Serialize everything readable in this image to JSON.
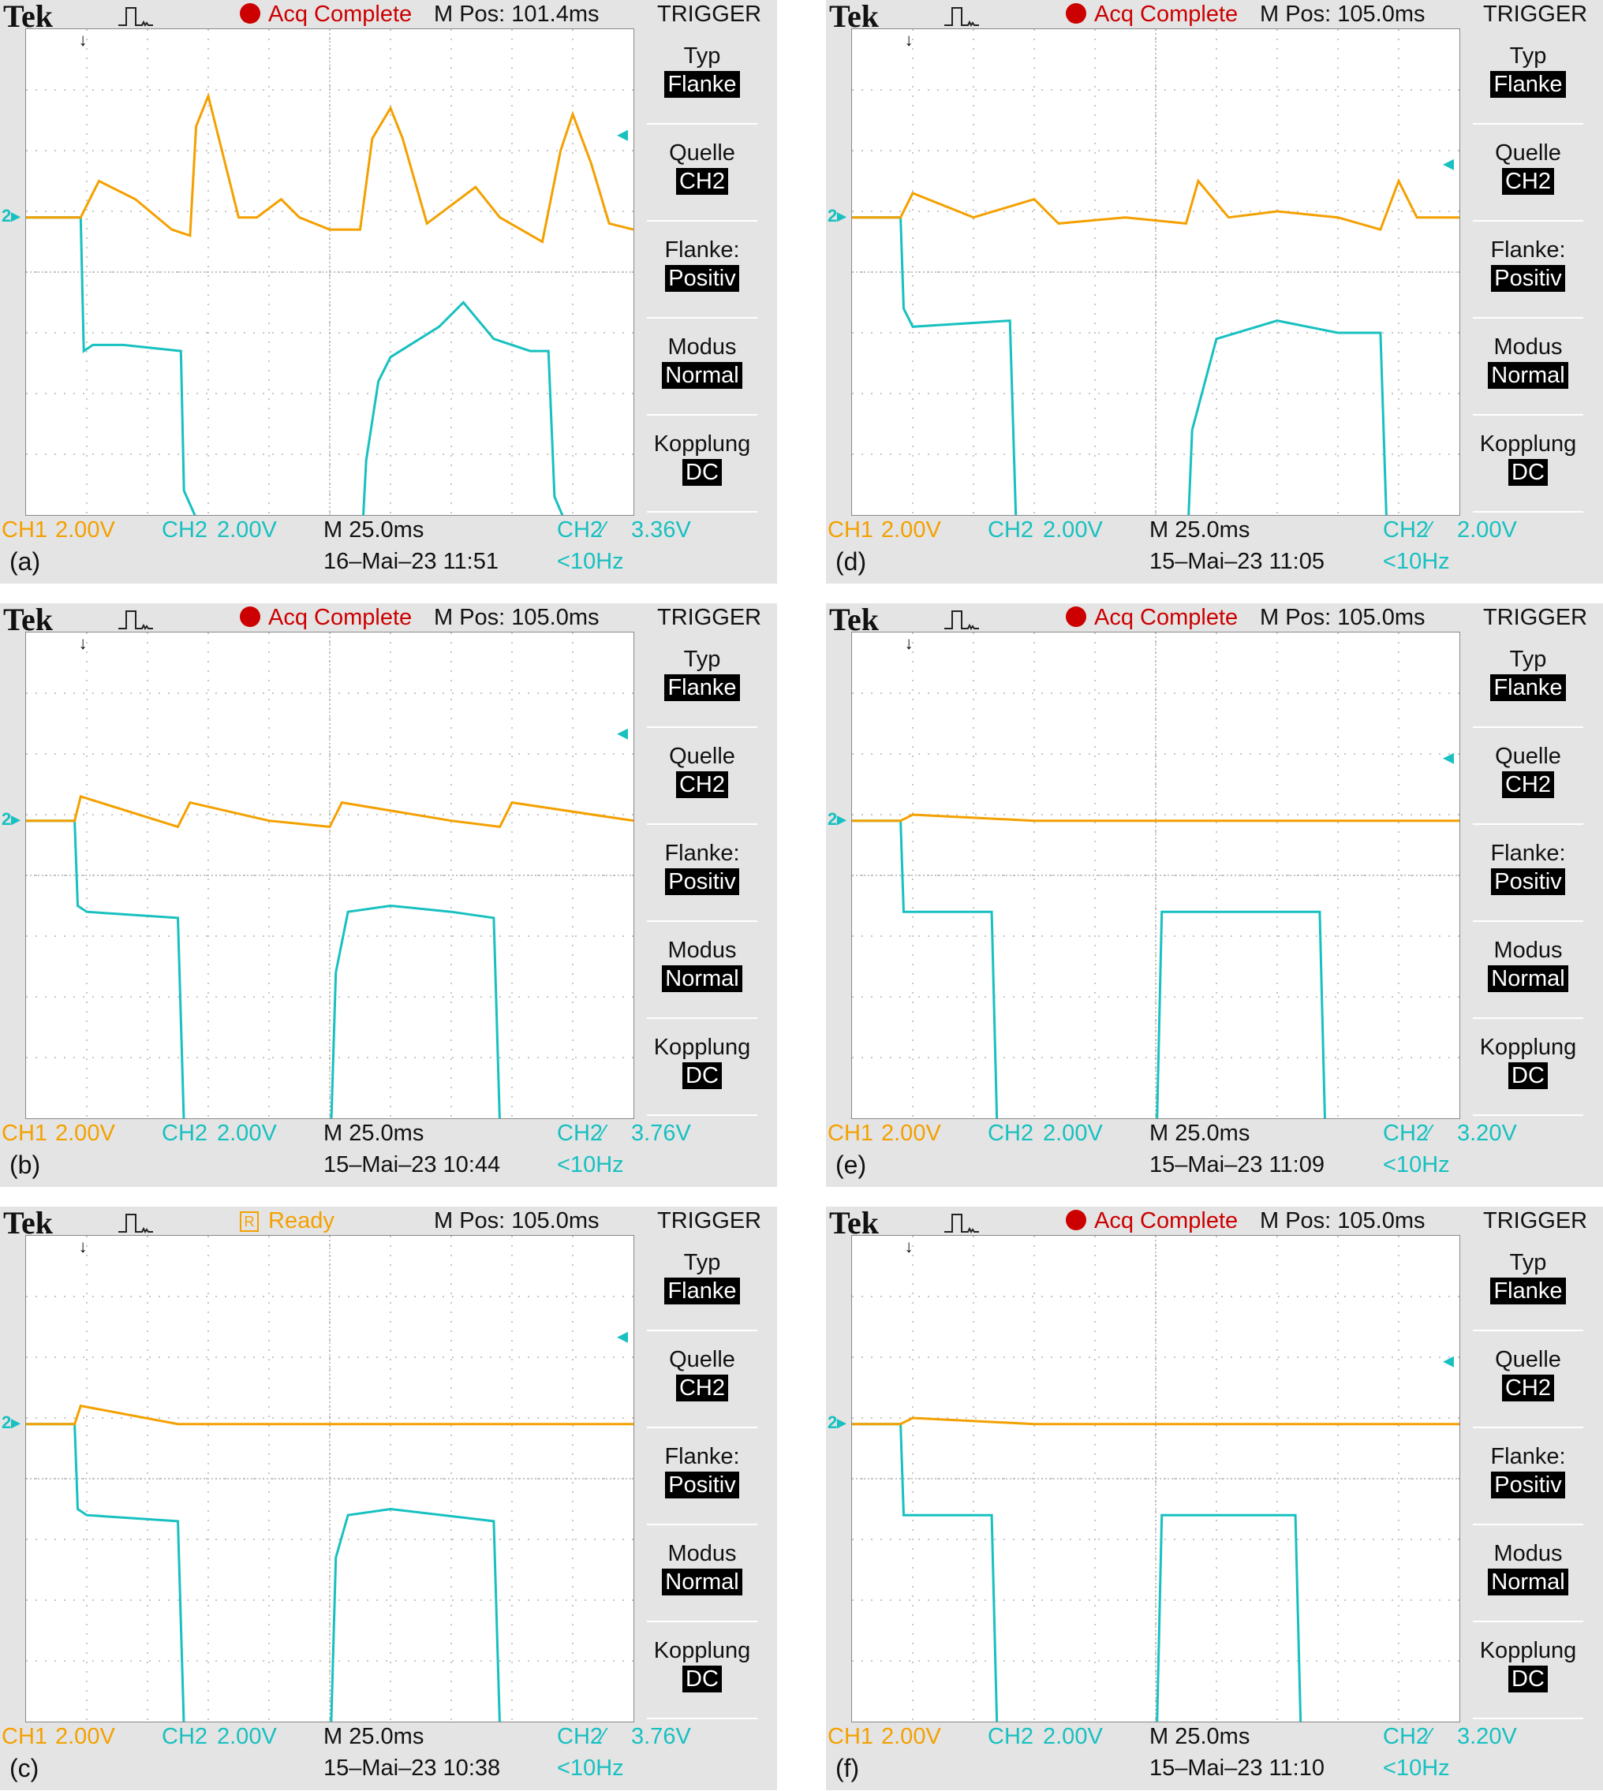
{
  "colors": {
    "ch1": "#f4a000",
    "ch2": "#18c0c0",
    "grid": "#b4b4b4",
    "panel": "#e4e4e4",
    "acq": "#cc0000"
  },
  "icons": {
    "pulse": "pulse-shape-icon",
    "dot": "red-dot-icon",
    "ready": "ready-box-icon"
  },
  "panels": [
    {
      "sublabel": "(a)",
      "brand": "Tek",
      "status_kind": "acq",
      "status_icon_text": "",
      "status": "Acq Complete",
      "mpos": "M Pos: 101.4ms",
      "trigger_title": "TRIGGER",
      "menu": [
        {
          "label": "Typ",
          "value": "Flanke"
        },
        {
          "label": "Quelle",
          "value": "CH2"
        },
        {
          "label": "Flanke:",
          "value": "Positiv"
        },
        {
          "label": "Modus",
          "value": "Normal"
        },
        {
          "label": "Kopplung",
          "value": "DC"
        }
      ],
      "ch1_label": "CH1",
      "ch1_scale": "2.00V",
      "ch2_label": "CH2",
      "ch2_scale": "2.00V",
      "timebase": "M 25.0ms",
      "trig_src": "CH2",
      "trig_slope": "⁄",
      "trig_level": "3.36V",
      "datetime": "16–Mai–23 11:51",
      "freq": "<10Hz",
      "trig_pos_marker": "↓",
      "ch2_level_marker": "◂",
      "gnd_marker": "2▸",
      "trigger_level_fraction": 0.19,
      "ch2_trace": [
        [
          0,
          3
        ],
        [
          0.09,
          3
        ],
        [
          0.095,
          0.8
        ],
        [
          0.11,
          0.9
        ],
        [
          0.16,
          0.9
        ],
        [
          0.255,
          0.8
        ],
        [
          0.26,
          -1.5
        ],
        [
          0.3,
          -2.4
        ],
        [
          0.37,
          -3.2
        ],
        [
          0.4,
          -3.3
        ],
        [
          0.45,
          -2.9
        ],
        [
          0.5,
          -2.7
        ],
        [
          0.55,
          -2.9
        ],
        [
          0.56,
          -1.0
        ],
        [
          0.58,
          0.3
        ],
        [
          0.6,
          0.7
        ],
        [
          0.68,
          1.2
        ],
        [
          0.72,
          1.6
        ],
        [
          0.77,
          1.0
        ],
        [
          0.83,
          0.8
        ],
        [
          0.86,
          0.8
        ],
        [
          0.87,
          -1.6
        ],
        [
          0.9,
          -2.3
        ],
        [
          0.95,
          -2.7
        ],
        [
          1,
          -3.2
        ]
      ],
      "ch1_trace": [
        [
          0,
          3
        ],
        [
          0.09,
          3
        ],
        [
          0.12,
          3.6
        ],
        [
          0.18,
          3.3
        ],
        [
          0.24,
          2.8
        ],
        [
          0.27,
          2.7
        ],
        [
          0.28,
          4.5
        ],
        [
          0.3,
          5.0
        ],
        [
          0.32,
          4.2
        ],
        [
          0.35,
          3.0
        ],
        [
          0.38,
          3.0
        ],
        [
          0.42,
          3.3
        ],
        [
          0.45,
          3.0
        ],
        [
          0.5,
          2.8
        ],
        [
          0.55,
          2.8
        ],
        [
          0.57,
          4.3
        ],
        [
          0.6,
          4.8
        ],
        [
          0.62,
          4.3
        ],
        [
          0.66,
          2.9
        ],
        [
          0.7,
          3.2
        ],
        [
          0.74,
          3.5
        ],
        [
          0.78,
          3.0
        ],
        [
          0.85,
          2.6
        ],
        [
          0.88,
          4.1
        ],
        [
          0.9,
          4.7
        ],
        [
          0.93,
          3.9
        ],
        [
          0.96,
          2.9
        ],
        [
          1,
          2.8
        ]
      ]
    },
    {
      "sublabel": "(d)",
      "brand": "Tek",
      "status_kind": "acq",
      "status_icon_text": "",
      "status": "Acq Complete",
      "mpos": "M Pos: 105.0ms",
      "trigger_title": "TRIGGER",
      "menu": [
        {
          "label": "Typ",
          "value": "Flanke"
        },
        {
          "label": "Quelle",
          "value": "CH2"
        },
        {
          "label": "Flanke:",
          "value": "Positiv"
        },
        {
          "label": "Modus",
          "value": "Normal"
        },
        {
          "label": "Kopplung",
          "value": "DC"
        }
      ],
      "ch1_label": "CH1",
      "ch1_scale": "2.00V",
      "ch2_label": "CH2",
      "ch2_scale": "2.00V",
      "timebase": "M 25.0ms",
      "trig_src": "CH2",
      "trig_slope": "⁄",
      "trig_level": "2.00V",
      "datetime": "15–Mai–23 11:05",
      "freq": "<10Hz",
      "trig_pos_marker": "↓",
      "ch2_level_marker": "◂",
      "gnd_marker": "2▸",
      "trigger_level_fraction": 0.25,
      "ch2_trace": [
        [
          0,
          3
        ],
        [
          0.08,
          3
        ],
        [
          0.085,
          1.5
        ],
        [
          0.1,
          1.2
        ],
        [
          0.26,
          1.3
        ],
        [
          0.27,
          -2.0
        ],
        [
          0.3,
          -2.8
        ],
        [
          0.4,
          -3.0
        ],
        [
          0.48,
          -2.9
        ],
        [
          0.55,
          -2.9
        ],
        [
          0.56,
          -0.5
        ],
        [
          0.6,
          1.0
        ],
        [
          0.7,
          1.3
        ],
        [
          0.8,
          1.1
        ],
        [
          0.87,
          1.1
        ],
        [
          0.88,
          -2.0
        ],
        [
          0.92,
          -2.6
        ],
        [
          1,
          -3.0
        ]
      ],
      "ch1_trace": [
        [
          0,
          3
        ],
        [
          0.08,
          3
        ],
        [
          0.1,
          3.4
        ],
        [
          0.2,
          3.0
        ],
        [
          0.3,
          3.3
        ],
        [
          0.34,
          2.9
        ],
        [
          0.45,
          3.0
        ],
        [
          0.55,
          2.9
        ],
        [
          0.57,
          3.6
        ],
        [
          0.62,
          3.0
        ],
        [
          0.7,
          3.1
        ],
        [
          0.8,
          3.0
        ],
        [
          0.87,
          2.8
        ],
        [
          0.9,
          3.6
        ],
        [
          0.93,
          3.0
        ],
        [
          1,
          3.0
        ]
      ]
    },
    {
      "sublabel": "(b)",
      "brand": "Tek",
      "status_kind": "acq",
      "status_icon_text": "",
      "status": "Acq Complete",
      "mpos": "M Pos: 105.0ms",
      "trigger_title": "TRIGGER",
      "menu": [
        {
          "label": "Typ",
          "value": "Flanke"
        },
        {
          "label": "Quelle",
          "value": "CH2"
        },
        {
          "label": "Flanke:",
          "value": "Positiv"
        },
        {
          "label": "Modus",
          "value": "Normal"
        },
        {
          "label": "Kopplung",
          "value": "DC"
        }
      ],
      "ch1_label": "CH1",
      "ch1_scale": "2.00V",
      "ch2_label": "CH2",
      "ch2_scale": "2.00V",
      "timebase": "M 25.0ms",
      "trig_src": "CH2",
      "trig_slope": "⁄",
      "trig_level": "3.76V",
      "datetime": "15–Mai–23 10:44",
      "freq": "<10Hz",
      "trig_pos_marker": "↓",
      "ch2_level_marker": "◂",
      "gnd_marker": "2▸",
      "trigger_level_fraction": 0.18,
      "ch2_trace": [
        [
          0,
          3
        ],
        [
          0.08,
          3
        ],
        [
          0.085,
          1.6
        ],
        [
          0.1,
          1.5
        ],
        [
          0.25,
          1.4
        ],
        [
          0.26,
          -2.0
        ],
        [
          0.28,
          -2.6
        ],
        [
          0.4,
          -2.9
        ],
        [
          0.5,
          -2.8
        ],
        [
          0.51,
          0.5
        ],
        [
          0.53,
          1.5
        ],
        [
          0.6,
          1.6
        ],
        [
          0.7,
          1.5
        ],
        [
          0.77,
          1.4
        ],
        [
          0.78,
          -2.0
        ],
        [
          0.8,
          -2.6
        ],
        [
          0.9,
          -2.9
        ],
        [
          1,
          -2.8
        ]
      ],
      "ch1_trace": [
        [
          0,
          3
        ],
        [
          0.08,
          3
        ],
        [
          0.09,
          3.4
        ],
        [
          0.25,
          2.9
        ],
        [
          0.27,
          3.3
        ],
        [
          0.4,
          3.0
        ],
        [
          0.5,
          2.9
        ],
        [
          0.52,
          3.3
        ],
        [
          0.7,
          3.0
        ],
        [
          0.78,
          2.9
        ],
        [
          0.8,
          3.3
        ],
        [
          1,
          3.0
        ]
      ]
    },
    {
      "sublabel": "(e)",
      "brand": "Tek",
      "status_kind": "acq",
      "status_icon_text": "",
      "status": "Acq Complete",
      "mpos": "M Pos: 105.0ms",
      "trigger_title": "TRIGGER",
      "menu": [
        {
          "label": "Typ",
          "value": "Flanke"
        },
        {
          "label": "Quelle",
          "value": "CH2"
        },
        {
          "label": "Flanke:",
          "value": "Positiv"
        },
        {
          "label": "Modus",
          "value": "Normal"
        },
        {
          "label": "Kopplung",
          "value": "DC"
        }
      ],
      "ch1_label": "CH1",
      "ch1_scale": "2.00V",
      "ch2_label": "CH2",
      "ch2_scale": "2.00V",
      "timebase": "M 25.0ms",
      "trig_src": "CH2",
      "trig_slope": "⁄",
      "trig_level": "3.20V",
      "datetime": "15–Mai–23 11:09",
      "freq": "<10Hz",
      "trig_pos_marker": "↓",
      "ch2_level_marker": "◂",
      "gnd_marker": "2▸",
      "trigger_level_fraction": 0.23,
      "ch2_trace": [
        [
          0,
          3
        ],
        [
          0.08,
          3
        ],
        [
          0.085,
          1.5
        ],
        [
          0.23,
          1.5
        ],
        [
          0.24,
          -2.5
        ],
        [
          0.26,
          -2.9
        ],
        [
          0.5,
          -2.9
        ],
        [
          0.51,
          1.5
        ],
        [
          0.77,
          1.5
        ],
        [
          0.78,
          -2.5
        ],
        [
          0.8,
          -2.9
        ],
        [
          1,
          -2.9
        ]
      ],
      "ch1_trace": [
        [
          0,
          3
        ],
        [
          0.08,
          3
        ],
        [
          0.1,
          3.1
        ],
        [
          0.3,
          3.0
        ],
        [
          0.5,
          3.0
        ],
        [
          0.7,
          3.0
        ],
        [
          1,
          3.0
        ]
      ]
    },
    {
      "sublabel": "(c)",
      "brand": "Tek",
      "status_kind": "ready",
      "status_icon_text": "R",
      "status": "Ready",
      "mpos": "M Pos: 105.0ms",
      "trigger_title": "TRIGGER",
      "menu": [
        {
          "label": "Typ",
          "value": "Flanke"
        },
        {
          "label": "Quelle",
          "value": "CH2"
        },
        {
          "label": "Flanke:",
          "value": "Positiv"
        },
        {
          "label": "Modus",
          "value": "Normal"
        },
        {
          "label": "Kopplung",
          "value": "DC"
        }
      ],
      "ch1_label": "CH1",
      "ch1_scale": "2.00V",
      "ch2_label": "CH2",
      "ch2_scale": "2.00V",
      "timebase": "M 25.0ms",
      "trig_src": "CH2",
      "trig_slope": "⁄",
      "trig_level": "3.76V",
      "datetime": "15–Mai–23 10:38",
      "freq": "<10Hz",
      "trig_pos_marker": "↓",
      "ch2_level_marker": "◂",
      "gnd_marker": "2▸",
      "trigger_level_fraction": 0.18,
      "ch2_trace": [
        [
          0,
          3
        ],
        [
          0.08,
          3
        ],
        [
          0.085,
          1.6
        ],
        [
          0.1,
          1.5
        ],
        [
          0.25,
          1.4
        ],
        [
          0.26,
          -2.0
        ],
        [
          0.28,
          -2.7
        ],
        [
          0.4,
          -2.9
        ],
        [
          0.5,
          -2.8
        ],
        [
          0.51,
          0.8
        ],
        [
          0.53,
          1.5
        ],
        [
          0.6,
          1.6
        ],
        [
          0.77,
          1.4
        ],
        [
          0.78,
          -2.0
        ],
        [
          0.8,
          -2.7
        ],
        [
          1,
          -2.8
        ]
      ],
      "ch1_trace": [
        [
          0,
          3
        ],
        [
          0.08,
          3
        ],
        [
          0.09,
          3.3
        ],
        [
          0.25,
          3.0
        ],
        [
          0.5,
          3.0
        ],
        [
          0.77,
          3.0
        ],
        [
          1,
          3.0
        ]
      ]
    },
    {
      "sublabel": "(f)",
      "brand": "Tek",
      "status_kind": "acq",
      "status_icon_text": "",
      "status": "Acq Complete",
      "mpos": "M Pos: 105.0ms",
      "trigger_title": "TRIGGER",
      "menu": [
        {
          "label": "Typ",
          "value": "Flanke"
        },
        {
          "label": "Quelle",
          "value": "CH2"
        },
        {
          "label": "Flanke:",
          "value": "Positiv"
        },
        {
          "label": "Modus",
          "value": "Normal"
        },
        {
          "label": "Kopplung",
          "value": "DC"
        }
      ],
      "ch1_label": "CH1",
      "ch1_scale": "2.00V",
      "ch2_label": "CH2",
      "ch2_scale": "2.00V",
      "timebase": "M 25.0ms",
      "trig_src": "CH2",
      "trig_slope": "⁄",
      "trig_level": "3.20V",
      "datetime": "15–Mai–23 11:10",
      "freq": "<10Hz",
      "trig_pos_marker": "↓",
      "ch2_level_marker": "◂",
      "gnd_marker": "2▸",
      "trigger_level_fraction": 0.23,
      "ch2_trace": [
        [
          0,
          3
        ],
        [
          0.08,
          3
        ],
        [
          0.085,
          1.5
        ],
        [
          0.23,
          1.5
        ],
        [
          0.24,
          -2.5
        ],
        [
          0.26,
          -2.9
        ],
        [
          0.5,
          -2.9
        ],
        [
          0.51,
          1.5
        ],
        [
          0.73,
          1.5
        ],
        [
          0.74,
          -2.5
        ],
        [
          0.76,
          -2.9
        ],
        [
          1,
          -2.9
        ]
      ],
      "ch1_trace": [
        [
          0,
          3
        ],
        [
          0.08,
          3
        ],
        [
          0.1,
          3.1
        ],
        [
          0.3,
          3.0
        ],
        [
          0.5,
          3.0
        ],
        [
          0.7,
          3.0
        ],
        [
          1,
          3.0
        ]
      ]
    }
  ]
}
